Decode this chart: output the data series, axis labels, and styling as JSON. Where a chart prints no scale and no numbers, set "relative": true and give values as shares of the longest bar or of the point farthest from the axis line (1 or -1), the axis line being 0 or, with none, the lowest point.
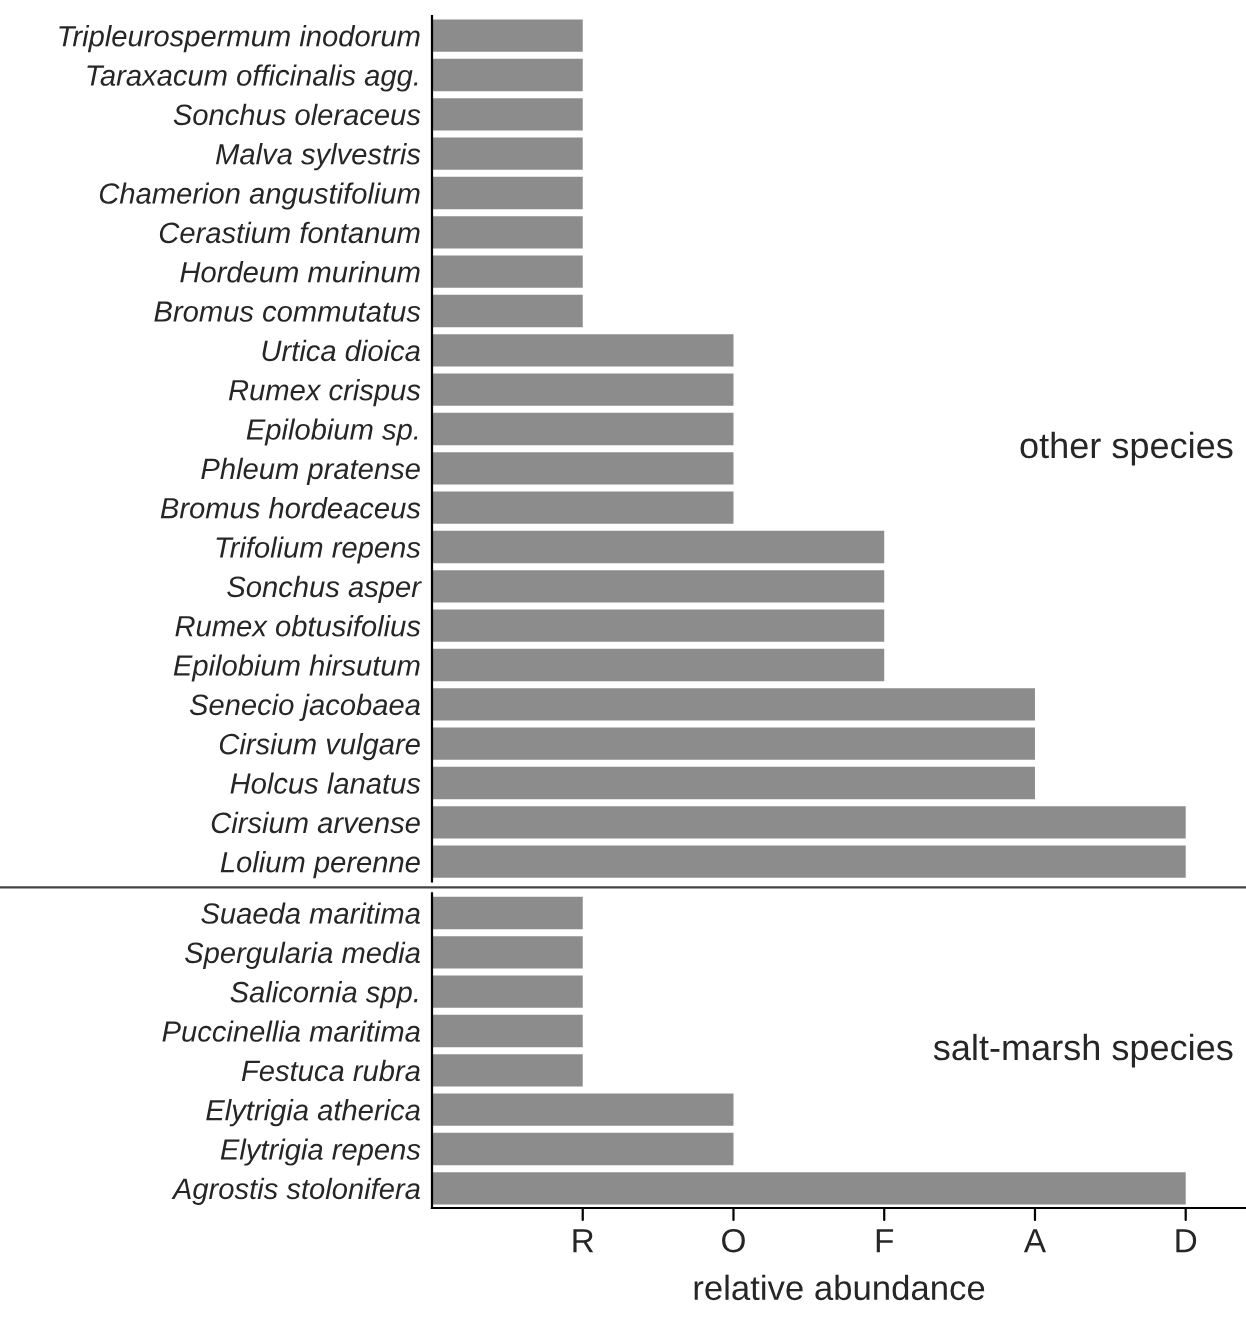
{
  "chart_data": [
    {
      "type": "bar",
      "orientation": "horizontal",
      "relative": true,
      "color": "#8c8c8c",
      "tick_labels": "y",
      "categories": [
        "Tripleurospermum inodorum",
        "Taraxacum officinalis agg.",
        "Sonchus oleraceus",
        "Malva sylvestris",
        "Chamerion angustifolium",
        "Cerastium fontanum",
        "Hordeum murinum",
        "Bromus commutatus",
        "Urtica dioica",
        "Rumex crispus",
        "Epilobium sp.",
        "Phleum pratense",
        "Bromus hordeaceus",
        "Trifolium repens",
        "Sonchus asper",
        "Rumex obtusifolius",
        "Epilobium hirsutum",
        "Senecio jacobaea",
        "Cirsium vulgare",
        "Holcus lanatus",
        "Cirsium arvense",
        "Lolium perenne"
      ],
      "values": [
        0.2,
        0.2,
        0.2,
        0.2,
        0.2,
        0.2,
        0.2,
        0.2,
        0.4,
        0.4,
        0.4,
        0.4,
        0.4,
        0.6,
        0.6,
        0.6,
        0.6,
        0.8,
        0.8,
        0.8,
        1,
        1
      ],
      "annotations": [
        "other species",
        {
          "text": "R",
          "x": 0.2
        },
        {
          "text": "O",
          "x": 0.4
        },
        {
          "text": "F",
          "x": 0.6
        },
        {
          "text": "A",
          "x": 0.8
        },
        {
          "text": "D",
          "x": 1
        }
      ]
    },
    {
      "type": "bar",
      "orientation": "horizontal",
      "relative": true,
      "color": "#8c8c8c",
      "xlabel": "relative abundance",
      "categories": [
        "Suaeda maritima",
        "Spergularia media",
        "Salicornia spp.",
        "Puccinellia maritima",
        "Festuca rubra",
        "Elytrigia atherica",
        "Elytrigia repens",
        "Agrostis stolonifera"
      ],
      "values": [
        0.2,
        0.2,
        0.2,
        0.2,
        0.2,
        0.4,
        0.4,
        1
      ],
      "annotations": [
        "salt-marsh species"
      ]
    }
  ]
}
